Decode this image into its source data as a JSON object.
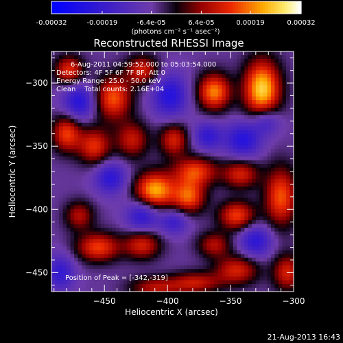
{
  "colorbar": {
    "ticks": [
      "-0.00032",
      "-0.00019",
      "-6.4e-05",
      "6.4e-05",
      "0.00019",
      "0.00032"
    ],
    "tick_values": [
      -0.00032,
      -0.00019,
      -6.4e-05,
      6.4e-05,
      0.00019,
      0.00032
    ],
    "range": [
      -0.00032,
      0.00032
    ],
    "unit_label": "(photons cm⁻² s⁻¹ asec⁻²)"
  },
  "chart_data": {
    "type": "heatmap",
    "title": "Reconstructed RHESSI Image",
    "xlabel": "Heliocentric X (arcsec)",
    "ylabel": "Heliocentric Y (arcsec)",
    "xlim": [
      -492,
      -300
    ],
    "ylim": [
      -465,
      -275
    ],
    "xticks": [
      -450,
      -400,
      -350,
      -300
    ],
    "yticks": [
      -300,
      -350,
      -400,
      -450
    ],
    "info_lines": [
      "6-Aug-2011 04:59:52.000 to 05:03:54.000",
      "Detectors: 4F 5F 6F 7F 8F, Att 0",
      "Energy Range: 25.0 - 50.0 keV",
      "Clean    Total counts: 2.16E+04"
    ],
    "peak_label": "Position of Peak = [-342,-319]",
    "peak": {
      "x": -342,
      "y": -319
    },
    "blobs": [
      {
        "x": -325,
        "y": -305,
        "v": 1.0,
        "sx": 10,
        "sy": 16
      },
      {
        "x": -363,
        "y": -307,
        "v": 0.8,
        "sx": 9,
        "sy": 10
      },
      {
        "x": -443,
        "y": -312,
        "v": 0.7,
        "sx": 10,
        "sy": 12
      },
      {
        "x": -420,
        "y": -290,
        "v": 0.55,
        "sx": 9,
        "sy": 8
      },
      {
        "x": -478,
        "y": -290,
        "v": 0.6,
        "sx": 8,
        "sy": 8
      },
      {
        "x": -428,
        "y": -345,
        "v": 0.5,
        "sx": 9,
        "sy": 10
      },
      {
        "x": -458,
        "y": -350,
        "v": 0.6,
        "sx": 9,
        "sy": 10
      },
      {
        "x": -480,
        "y": -340,
        "v": 0.65,
        "sx": 8,
        "sy": 10
      },
      {
        "x": -395,
        "y": -345,
        "v": 0.55,
        "sx": 8,
        "sy": 9
      },
      {
        "x": -378,
        "y": -370,
        "v": 0.65,
        "sx": 12,
        "sy": 8
      },
      {
        "x": -342,
        "y": -372,
        "v": 0.55,
        "sx": 10,
        "sy": 8
      },
      {
        "x": -410,
        "y": -385,
        "v": 0.9,
        "sx": 11,
        "sy": 10
      },
      {
        "x": -383,
        "y": -390,
        "v": 0.7,
        "sx": 9,
        "sy": 9
      },
      {
        "x": -310,
        "y": -390,
        "v": 0.7,
        "sx": 9,
        "sy": 16
      },
      {
        "x": -345,
        "y": -405,
        "v": 0.65,
        "sx": 10,
        "sy": 8
      },
      {
        "x": -470,
        "y": -405,
        "v": 0.45,
        "sx": 8,
        "sy": 8
      },
      {
        "x": -455,
        "y": -430,
        "v": 0.65,
        "sx": 12,
        "sy": 8
      },
      {
        "x": -420,
        "y": -428,
        "v": 0.55,
        "sx": 10,
        "sy": 8
      },
      {
        "x": -363,
        "y": -428,
        "v": 0.45,
        "sx": 9,
        "sy": 7
      },
      {
        "x": -345,
        "y": -448,
        "v": 0.55,
        "sx": 12,
        "sy": 8
      },
      {
        "x": -378,
        "y": -458,
        "v": 0.5,
        "sx": 14,
        "sy": 6
      },
      {
        "x": -410,
        "y": -462,
        "v": 0.45,
        "sx": 14,
        "sy": 6
      },
      {
        "x": -305,
        "y": -450,
        "v": 0.55,
        "sx": 8,
        "sy": 10
      },
      {
        "x": -340,
        "y": -345,
        "v": -0.55,
        "sx": 10,
        "sy": 10
      },
      {
        "x": -322,
        "y": -330,
        "v": -0.45,
        "sx": 8,
        "sy": 8
      },
      {
        "x": -470,
        "y": -315,
        "v": -0.55,
        "sx": 9,
        "sy": 10
      },
      {
        "x": -398,
        "y": -310,
        "v": -0.55,
        "sx": 10,
        "sy": 12
      },
      {
        "x": -445,
        "y": -375,
        "v": -0.5,
        "sx": 9,
        "sy": 9
      },
      {
        "x": -420,
        "y": -405,
        "v": -0.5,
        "sx": 9,
        "sy": 9
      },
      {
        "x": -368,
        "y": -342,
        "v": -0.45,
        "sx": 8,
        "sy": 8
      },
      {
        "x": -330,
        "y": -425,
        "v": -0.5,
        "sx": 9,
        "sy": 9
      },
      {
        "x": -485,
        "y": -450,
        "v": -0.45,
        "sx": 8,
        "sy": 10
      },
      {
        "x": -395,
        "y": -410,
        "v": -0.4,
        "sx": 8,
        "sy": 7
      }
    ]
  },
  "footer": {
    "timestamp": "21-Aug-2013 16:43"
  }
}
